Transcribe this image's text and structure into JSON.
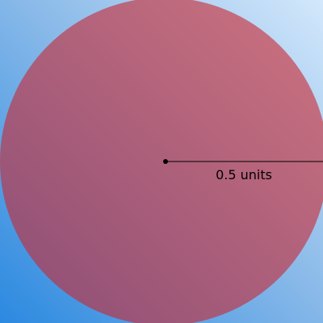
{
  "diagram": {
    "shape": "circle",
    "radius_label": "0.5 units",
    "colors": {
      "background_light": "#d3e8fb",
      "background_mid": "#8cbbe9",
      "background_dark": "#2b89e0",
      "circle_light": "#cf7380",
      "circle_dark": "#8b4d75",
      "line": "#000000"
    }
  }
}
